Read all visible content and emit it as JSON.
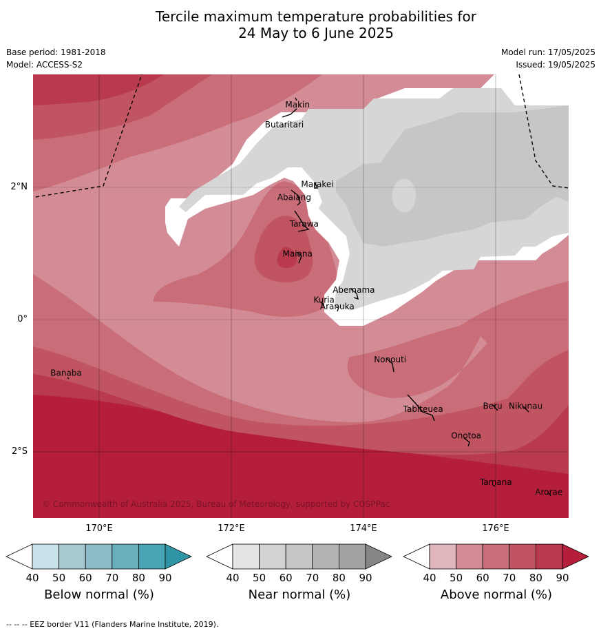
{
  "title": {
    "line1": "Tercile maximum temperature probabilities for",
    "line2": "24 May to 6 June 2025"
  },
  "meta": {
    "base_period": "Base period: 1981-2018",
    "model": "Model: ACCESS-S2",
    "model_run": "Model run: 17/05/2025",
    "issued": "Issued: 19/05/2025"
  },
  "map": {
    "lon_range": [
      169.0,
      177.1
    ],
    "lat_range": [
      -3.0,
      3.7
    ],
    "lat_labels": [
      {
        "value": 2,
        "text": "2°N"
      },
      {
        "value": 0,
        "text": "0°"
      },
      {
        "value": -2,
        "text": "2°S"
      }
    ],
    "lon_labels": [
      {
        "value": 170,
        "text": "170°E"
      },
      {
        "value": 172,
        "text": "172°E"
      },
      {
        "value": 174,
        "text": "174°E"
      },
      {
        "value": 176,
        "text": "176°E"
      }
    ],
    "places": [
      {
        "name": "Makin",
        "lon": 173.0,
        "lat": 3.2
      },
      {
        "name": "Butaritari",
        "lon": 172.8,
        "lat": 2.9
      },
      {
        "name": "Marakei",
        "lon": 173.3,
        "lat": 2.0
      },
      {
        "name": "Abaiang",
        "lon": 172.95,
        "lat": 1.8
      },
      {
        "name": "Tarawa",
        "lon": 173.1,
        "lat": 1.4
      },
      {
        "name": "Maiana",
        "lon": 173.0,
        "lat": 0.95
      },
      {
        "name": "Abemama",
        "lon": 173.85,
        "lat": 0.4
      },
      {
        "name": "Kuria",
        "lon": 173.4,
        "lat": 0.25
      },
      {
        "name": "Aranuka",
        "lon": 173.6,
        "lat": 0.15
      },
      {
        "name": "Nonouti",
        "lon": 174.4,
        "lat": -0.65
      },
      {
        "name": "Banaba",
        "lon": 169.5,
        "lat": -0.85
      },
      {
        "name": "Tabiteuea",
        "lon": 174.9,
        "lat": -1.4
      },
      {
        "name": "Beru",
        "lon": 175.95,
        "lat": -1.35
      },
      {
        "name": "Nikunau",
        "lon": 176.45,
        "lat": -1.35
      },
      {
        "name": "Onotoa",
        "lon": 175.55,
        "lat": -1.8
      },
      {
        "name": "Tamana",
        "lon": 176.0,
        "lat": -2.5
      },
      {
        "name": "Arorae",
        "lon": 176.8,
        "lat": -2.65
      }
    ],
    "copyright": "© Commonwealth of Australia 2025, Bureau of Meteorology, supported by COSPPac"
  },
  "colorbars": [
    {
      "name": "below",
      "label": "Below normal (%)",
      "ticks": [
        "40",
        "50",
        "60",
        "70",
        "80",
        "90"
      ],
      "colors": [
        "#ffffff",
        "#c9e3ea",
        "#a6c9d2",
        "#8bbcc6",
        "#6aaebb",
        "#48a3b2",
        "#2f94a4"
      ]
    },
    {
      "name": "near",
      "label": "Near normal (%)",
      "ticks": [
        "40",
        "50",
        "60",
        "70",
        "80",
        "90"
      ],
      "colors": [
        "#ffffff",
        "#e4e4e4",
        "#d3d3d3",
        "#c6c6c6",
        "#b4b4b4",
        "#a2a2a2",
        "#868686"
      ]
    },
    {
      "name": "above",
      "label": "Above normal (%)",
      "ticks": [
        "40",
        "50",
        "60",
        "70",
        "80",
        "90"
      ],
      "colors": [
        "#ffffff",
        "#e2b6bd",
        "#d38c96",
        "#c96e79",
        "#c05561",
        "#b93a4c",
        "#b41e3a"
      ]
    }
  ],
  "footer": "--  --  -- EEZ border V11 (Flanders Marine Institute, 2019)."
}
